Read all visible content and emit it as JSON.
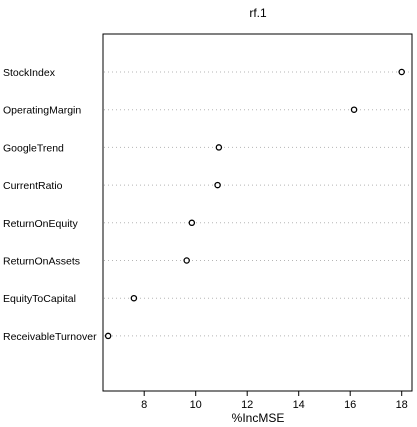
{
  "chart_data": {
    "type": "scatter",
    "title": "rf.1",
    "xlabel": "%IncMSE",
    "ylabel": "",
    "xlim": [
      6.4,
      18.4
    ],
    "xticks": [
      8,
      10,
      12,
      14,
      16,
      18
    ],
    "grid": "dotted horizontal guide lines per row",
    "marker": "open circle",
    "categories": [
      "StockIndex",
      "OperatingMargin",
      "GoogleTrend",
      "CurrentRatio",
      "ReturnOnEquity",
      "ReturnOnAssets",
      "EquityToCapital",
      "ReceivableTurnover"
    ],
    "values": [
      18.0,
      16.15,
      10.9,
      10.85,
      9.85,
      9.65,
      7.6,
      6.6
    ]
  }
}
